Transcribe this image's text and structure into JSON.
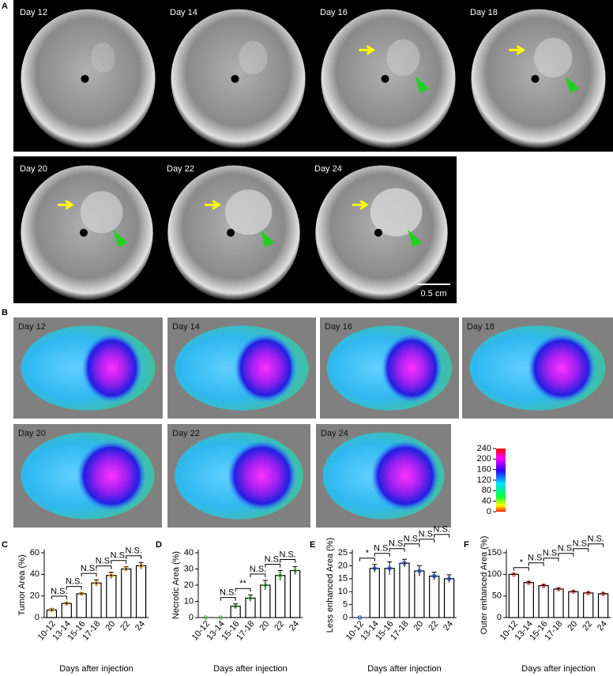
{
  "panel_a": {
    "label": "A",
    "images": [
      "Day 12",
      "Day 14",
      "Day 16",
      "Day 18",
      "Day 20",
      "Day 22",
      "Day 24"
    ],
    "scale_bar": "0.5 cm"
  },
  "panel_b": {
    "label": "B",
    "images": [
      "Day 12",
      "Day 14",
      "Day 16",
      "Day 18",
      "Day 20",
      "Day 22",
      "Day 24"
    ],
    "colorbar_ticks": [
      240,
      200,
      160,
      120,
      80,
      40,
      0
    ]
  },
  "chart_data": [
    {
      "type": "bar",
      "panel": "C",
      "ylabel": "Tumor Area (%)",
      "xlabel": "Days after injection",
      "color": "#f0a020",
      "categories": [
        "10-12",
        "13-14",
        "15-16",
        "17-18",
        "20",
        "22",
        "24"
      ],
      "values": [
        7,
        13,
        22,
        32,
        39,
        45,
        48
      ],
      "errors": [
        1.5,
        1,
        1,
        3,
        3,
        2,
        3
      ],
      "ylim": [
        0,
        60
      ],
      "yticks": [
        0,
        20,
        40,
        60
      ],
      "annotations": [
        {
          "label": "N.S.",
          "between": [
            0,
            1
          ]
        },
        {
          "label": "N.S.",
          "between": [
            1,
            2
          ]
        },
        {
          "label": "N.S.",
          "between": [
            2,
            3
          ]
        },
        {
          "label": "N.S.",
          "between": [
            3,
            4
          ]
        },
        {
          "label": "N.S.",
          "between": [
            4,
            5
          ]
        },
        {
          "label": "N.S.",
          "between": [
            5,
            6
          ]
        }
      ]
    },
    {
      "type": "bar",
      "panel": "D",
      "ylabel": "Necrotic Area (%)",
      "xlabel": "Days after injection",
      "color": "#50c050",
      "categories": [
        "10-12",
        "13-14",
        "15-16",
        "17-18",
        "20",
        "22",
        "24"
      ],
      "values": [
        0,
        0,
        7,
        12,
        20,
        26,
        29
      ],
      "errors": [
        0,
        0,
        1.5,
        2,
        3,
        3,
        2.5
      ],
      "ylim": [
        0,
        40
      ],
      "yticks": [
        0,
        10,
        20,
        30,
        40
      ],
      "annotations": [
        {
          "label": "N.S.",
          "between": [
            1,
            2
          ]
        },
        {
          "label": "**",
          "between": [
            2,
            3
          ]
        },
        {
          "label": "N.S.",
          "between": [
            3,
            4
          ]
        },
        {
          "label": "N.S.",
          "between": [
            4,
            5
          ]
        },
        {
          "label": "N.S.",
          "between": [
            5,
            6
          ]
        }
      ]
    },
    {
      "type": "bar",
      "panel": "E",
      "ylabel": "Less enhanced Area (%)",
      "xlabel": "Days after injection",
      "color": "#3050e0",
      "categories": [
        "10-12",
        "13-14",
        "15-16",
        "17-18",
        "20",
        "22",
        "24"
      ],
      "values": [
        0,
        19,
        19,
        21,
        18,
        16,
        15
      ],
      "errors": [
        0,
        1.5,
        2.5,
        1.5,
        2,
        1.5,
        1.5
      ],
      "ylim": [
        0,
        25
      ],
      "yticks": [
        0,
        5,
        10,
        15,
        20,
        25
      ],
      "annotations": [
        {
          "label": "*",
          "between": [
            0,
            1
          ]
        },
        {
          "label": "N.S.",
          "between": [
            1,
            2
          ]
        },
        {
          "label": "N.S.",
          "between": [
            2,
            3
          ]
        },
        {
          "label": "N.S.",
          "between": [
            3,
            4
          ]
        },
        {
          "label": "N.S.",
          "between": [
            4,
            5
          ]
        },
        {
          "label": "N.S.",
          "between": [
            5,
            6
          ]
        }
      ]
    },
    {
      "type": "bar",
      "panel": "F",
      "ylabel": "Outer enhanced Area (%)",
      "xlabel": "Days after injection",
      "color": "#e03030",
      "categories": [
        "10-12",
        "13-14",
        "15-16",
        "17-18",
        "20",
        "22",
        "24"
      ],
      "values": [
        100,
        81,
        74,
        66,
        60,
        57,
        55
      ],
      "errors": [
        1,
        2,
        2,
        2,
        1.5,
        1.5,
        1.5
      ],
      "ylim": [
        0,
        150
      ],
      "yticks": [
        0,
        50,
        100,
        150
      ],
      "annotations": [
        {
          "label": "*",
          "between": [
            0,
            1
          ]
        },
        {
          "label": "N.S.",
          "between": [
            1,
            2
          ]
        },
        {
          "label": "N.S.",
          "between": [
            2,
            3
          ]
        },
        {
          "label": "N.S.",
          "between": [
            3,
            4
          ]
        },
        {
          "label": "N.S.",
          "between": [
            4,
            5
          ]
        },
        {
          "label": "N.S.",
          "between": [
            5,
            6
          ]
        }
      ]
    }
  ]
}
